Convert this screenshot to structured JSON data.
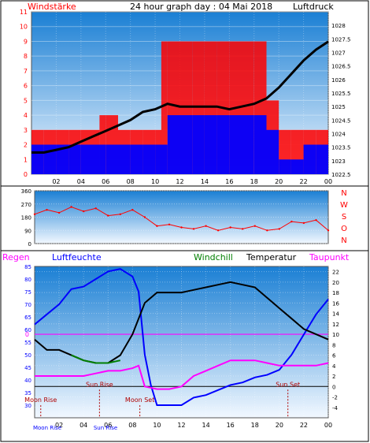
{
  "header": {
    "left_label": "Windstärke",
    "title": "24 hour graph day : 04 Mai 2018",
    "right_label": "Luftdruck"
  },
  "colors": {
    "red": "#ff0000",
    "blue": "#0000ff",
    "black": "#000000",
    "magenta": "#ff00ff",
    "green": "#007f00",
    "dark_red": "#b00000",
    "sky_top": "#1a7fd4",
    "sky_bottom": "#f2f8ff"
  },
  "chart_data": [
    {
      "type": "line",
      "panel": "wind-pressure",
      "x_ticks": [
        "02",
        "04",
        "06",
        "08",
        "10",
        "12",
        "14",
        "16",
        "18",
        "20",
        "22",
        "00"
      ],
      "xlim_hours": [
        0,
        24
      ],
      "left_axis": {
        "label": "Windstärke",
        "ylim": [
          0,
          11
        ],
        "ticks": [
          "0",
          "1",
          "2",
          "3",
          "4",
          "5",
          "6",
          "7",
          "8",
          "9",
          "10",
          "11"
        ]
      },
      "right_axis": {
        "label": "Luftdruck",
        "ylim": [
          1022.5,
          1028.5
        ],
        "ticks": [
          "1022.5",
          "1023",
          "1023.5",
          "1024",
          "1024.5",
          "1025",
          "1025.5",
          "1026",
          "1026.5",
          "1027",
          "1027.5",
          "1028"
        ]
      },
      "series": [
        {
          "color": "red",
          "axis": "left",
          "x": [
            0,
            1,
            2,
            3,
            4,
            5,
            5.5,
            6,
            7,
            8,
            9,
            10,
            10.5,
            11,
            12,
            13,
            14,
            15,
            16,
            17,
            18,
            19,
            20,
            21,
            22,
            23,
            24
          ],
          "y": [
            3,
            3,
            3,
            3,
            3,
            3,
            4,
            4,
            3,
            3,
            3,
            3,
            9,
            9,
            9,
            9,
            9,
            9,
            9,
            9,
            9,
            5,
            3,
            3,
            3,
            3,
            3
          ]
        },
        {
          "color": "blue",
          "axis": "left",
          "x": [
            0,
            1,
            2,
            3,
            4,
            5,
            6,
            7,
            8,
            9,
            10,
            11,
            12,
            13,
            14,
            15,
            16,
            17,
            18,
            19,
            20,
            21,
            22,
            23,
            24
          ],
          "y": [
            2,
            2,
            2,
            2,
            2,
            2,
            2,
            2,
            2,
            2,
            2,
            4,
            4,
            4,
            4,
            4,
            4,
            4,
            4,
            3,
            1,
            1,
            2,
            2,
            2
          ]
        },
        {
          "color": "black",
          "axis": "right",
          "x": [
            0,
            1,
            2,
            3,
            4,
            5,
            6,
            7,
            8,
            9,
            10,
            11,
            12,
            13,
            14,
            15,
            16,
            17,
            18,
            19,
            20,
            21,
            22,
            23,
            24
          ],
          "y": [
            1023.3,
            1023.3,
            1023.4,
            1023.5,
            1023.7,
            1023.9,
            1024.1,
            1024.3,
            1024.5,
            1024.8,
            1024.9,
            1025.1,
            1025.0,
            1025.0,
            1025.0,
            1025.0,
            1024.9,
            1025.0,
            1025.1,
            1025.3,
            1025.7,
            1026.2,
            1026.7,
            1027.1,
            1027.4
          ]
        }
      ]
    },
    {
      "type": "scatter",
      "panel": "wind-direction",
      "xlim_hours": [
        0,
        24
      ],
      "left_axis": {
        "ylim": [
          0,
          360
        ],
        "ticks": [
          "0",
          "90",
          "180",
          "270",
          "360"
        ]
      },
      "right_labels": [
        "N",
        "W",
        "S",
        "O",
        "N"
      ],
      "series": [
        {
          "color": "red",
          "x": [
            0,
            1,
            2,
            3,
            4,
            5,
            6,
            7,
            8,
            9,
            10,
            11,
            12,
            13,
            14,
            15,
            16,
            17,
            18,
            19,
            20,
            21,
            22,
            23,
            24
          ],
          "y": [
            200,
            230,
            210,
            250,
            220,
            240,
            190,
            200,
            230,
            180,
            120,
            130,
            110,
            100,
            120,
            90,
            110,
            100,
            120,
            90,
            100,
            150,
            140,
            160,
            90
          ]
        }
      ]
    },
    {
      "type": "line",
      "panel": "humidity-temperature",
      "x_ticks": [
        "02",
        "04",
        "06",
        "08",
        "10",
        "12",
        "14",
        "16",
        "18",
        "20",
        "22",
        "00"
      ],
      "xlim_hours": [
        0,
        24
      ],
      "legend": [
        "Regen",
        "Luftfeuchte",
        "Windchill",
        "Temperatur",
        "Taupunkt"
      ],
      "left_axis": {
        "label": "Luftfeuchte",
        "ylim": [
          25,
          85
        ],
        "ticks": [
          "30",
          "35",
          "40",
          "45",
          "50",
          "55",
          "60",
          "65",
          "70",
          "75",
          "80",
          "85"
        ]
      },
      "right_axis": {
        "label": "Temperatur",
        "ylim": [
          -6,
          23
        ],
        "ticks": [
          "-4",
          "-2",
          "0",
          "2",
          "4",
          "6",
          "8",
          "10",
          "12",
          "14",
          "16",
          "18",
          "20",
          "22"
        ]
      },
      "rain_value": "0",
      "markers": [
        {
          "label": "Sun Rise",
          "hour": 5.3,
          "value": 0
        },
        {
          "label": "Sun Set",
          "hour": 20.7,
          "value": 0
        },
        {
          "label": "Moon Rise",
          "hour": 0.5,
          "value": -3
        },
        {
          "label": "Moon Set",
          "hour": 8.6,
          "value": -3
        }
      ],
      "moon_axis_labels": [
        "Moon Rise",
        "Sun Rise"
      ],
      "series": [
        {
          "color": "blue",
          "name": "Luftfeuchte",
          "axis": "left",
          "x": [
            0,
            1,
            2,
            3,
            4,
            5,
            6,
            7,
            8,
            8.5,
            9,
            9.5,
            10,
            11,
            12,
            13,
            14,
            15,
            16,
            17,
            18,
            19,
            20,
            21,
            22,
            23,
            24
          ],
          "y": [
            62,
            66,
            70,
            76,
            77,
            80,
            83,
            84,
            81,
            75,
            50,
            38,
            30,
            30,
            30,
            33,
            34,
            36,
            38,
            39,
            41,
            42,
            44,
            50,
            58,
            66,
            72
          ]
        },
        {
          "color": "black",
          "name": "Temperatur",
          "axis": "right",
          "x": [
            0,
            1,
            2,
            3,
            4,
            5,
            6,
            7,
            8,
            9,
            10,
            11,
            12,
            13,
            14,
            15,
            16,
            17,
            18,
            19,
            20,
            21,
            22,
            23,
            24
          ],
          "y": [
            9,
            7,
            7,
            6,
            5,
            4.5,
            4.5,
            6,
            10,
            16,
            18,
            18,
            18,
            18.5,
            19,
            19.5,
            20,
            19.5,
            19,
            17,
            15,
            13,
            11,
            10,
            9
          ]
        },
        {
          "color": "magenta",
          "name": "Taupunkt",
          "axis": "right",
          "x": [
            0,
            1,
            2,
            3,
            4,
            5,
            6,
            7,
            8,
            8.5,
            9,
            10,
            11,
            12,
            13,
            14,
            15,
            16,
            17,
            18,
            19,
            20,
            21,
            22,
            23,
            24
          ],
          "y": [
            2,
            2,
            2,
            2,
            2,
            2.5,
            3,
            3,
            3.5,
            4,
            0,
            -0.5,
            -0.5,
            0,
            2,
            3,
            4,
            5,
            5,
            5,
            4.5,
            4,
            4,
            4,
            4,
            4.5
          ]
        },
        {
          "color": "green",
          "name": "Windchill",
          "axis": "right",
          "x": [
            3,
            4,
            5,
            6,
            7
          ],
          "y": [
            6,
            5,
            4.5,
            4.5,
            5
          ]
        }
      ]
    }
  ]
}
